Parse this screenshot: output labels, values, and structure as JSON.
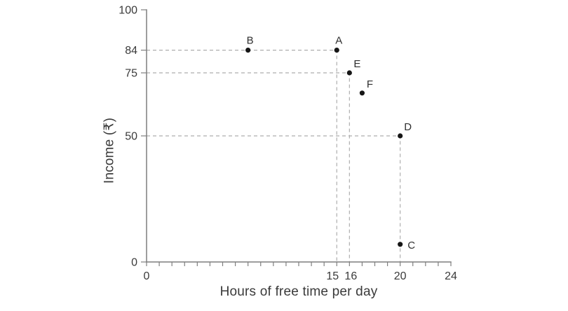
{
  "chart_data": {
    "type": "scatter",
    "title": "",
    "xlabel": "Hours of free time per day",
    "ylabel": "Income (₹)",
    "xlim": [
      0,
      24
    ],
    "ylim": [
      0,
      100
    ],
    "grid": false,
    "legend": false,
    "x_minor_tick_step": 1,
    "x_ticks": [
      {
        "v": 0,
        "label": "0"
      },
      {
        "v": 15,
        "label": "15",
        "dx": -6
      },
      {
        "v": 16,
        "label": "16",
        "dx": 2
      },
      {
        "v": 20,
        "label": "20"
      },
      {
        "v": 24,
        "label": "24"
      }
    ],
    "y_ticks": [
      {
        "v": 0,
        "label": "0"
      },
      {
        "v": 50,
        "label": "50"
      },
      {
        "v": 75,
        "label": "75"
      },
      {
        "v": 84,
        "label": "84"
      },
      {
        "v": 100,
        "label": "100"
      }
    ],
    "points": [
      {
        "label": "A",
        "x": 15,
        "y": 84,
        "label_pos": "top"
      },
      {
        "label": "B",
        "x": 8,
        "y": 84,
        "label_pos": "top"
      },
      {
        "label": "C",
        "x": 20,
        "y": 7,
        "label_pos": "right"
      },
      {
        "label": "D",
        "x": 20,
        "y": 50,
        "label_pos": "top-right"
      },
      {
        "label": "E",
        "x": 16,
        "y": 75,
        "label_pos": "top-right"
      },
      {
        "label": "F",
        "x": 17,
        "y": 67,
        "label_pos": "top-right"
      }
    ],
    "guides": [
      {
        "x": 15,
        "y": 84
      },
      {
        "x": 16,
        "y": 75
      },
      {
        "x": 20,
        "y": 50
      }
    ],
    "style": {
      "background": "#ffffff",
      "axis_color": "#7f7f7f",
      "guide_color": "#aeaeae",
      "point_color": "#161616",
      "text_color": "#3a3a3a",
      "point_label_color": "#2e2e2e"
    }
  }
}
